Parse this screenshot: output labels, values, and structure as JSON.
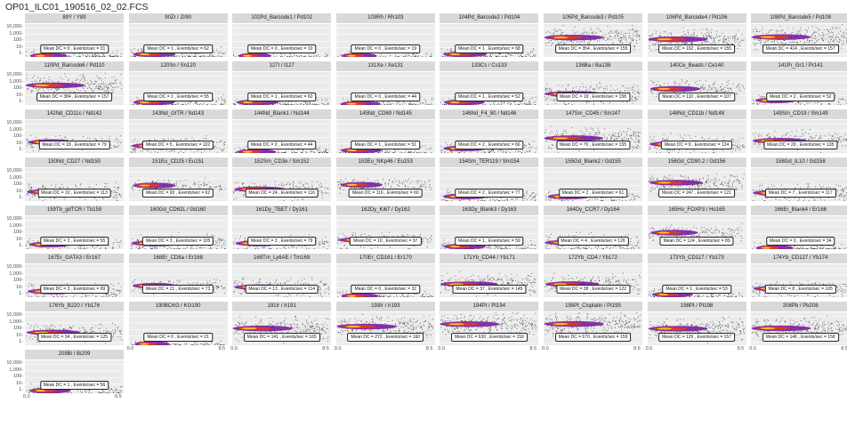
{
  "title": "OP01_ILC01_190516_02_02.FCS",
  "colors": {
    "panel_bg": "#ebebeb",
    "strip_bg": "#d9d9d9",
    "grid": "#ffffff",
    "density_low": "#111111",
    "density_mid": "#7a1fa2",
    "density_high": "#e8381a",
    "density_peak": "#ffd21f"
  },
  "chart_data": {
    "type": "scatter",
    "facet_layout": {
      "columns": 8,
      "rows": 8
    },
    "y_axis": {
      "scale": "log",
      "tick_labels": [
        "10,000-",
        "1,000-",
        "100-",
        "10-",
        "1-"
      ],
      "tick_values": [
        10000,
        1000,
        100,
        10,
        1
      ]
    },
    "x_axis": {
      "range": [
        0,
        8.5
      ],
      "tick_labels": [
        "0.0",
        "8.5"
      ]
    },
    "grid": true,
    "annotation_prefix_mean": "Mean DC = ",
    "annotation_prefix_events": "Events/sec = ",
    "panels": [
      {
        "label": "89Y / Y89",
        "mean_dc": 0,
        "events_per_sec": 31
      },
      {
        "label": "90Zr / Zr90",
        "mean_dc": 1,
        "events_per_sec": 62
      },
      {
        "label": "102Pd_Barcode1 / Pd102",
        "mean_dc": 0,
        "events_per_sec": 10
      },
      {
        "label": "103Rh / Rh103",
        "mean_dc": 0,
        "events_per_sec": 19
      },
      {
        "label": "104Pd_Barcode2 / Pd104",
        "mean_dc": 1,
        "events_per_sec": 68
      },
      {
        "label": "105Pd_Barcode3 / Pd105",
        "mean_dc": 354,
        "events_per_sec": 155
      },
      {
        "label": "106Pd_Barcode4 / Pd106",
        "mean_dc": 192,
        "events_per_sec": 155
      },
      {
        "label": "108Pd_Barcode5 / Pd108",
        "mean_dc": 414,
        "events_per_sec": 157
      },
      {
        "label": "110Pd_Barcode6 / Pd110",
        "mean_dc": 384,
        "events_per_sec": 157
      },
      {
        "label": "120Sn / Sn120",
        "mean_dc": 1,
        "events_per_sec": 55
      },
      {
        "label": "127I / I127",
        "mean_dc": 1,
        "events_per_sec": 60
      },
      {
        "label": "131Xe / Xe131",
        "mean_dc": 0,
        "events_per_sec": 44
      },
      {
        "label": "133Cs / Cs133",
        "mean_dc": 1,
        "events_per_sec": 52
      },
      {
        "label": "138Ba / Ba138",
        "mean_dc": 19,
        "events_per_sec": 158
      },
      {
        "label": "140Ce_Beads / Ce140",
        "mean_dc": 110,
        "events_per_sec": 107
      },
      {
        "label": "141Pr_Gr1 / Pr141",
        "mean_dc": 2,
        "events_per_sec": 52
      },
      {
        "label": "142Nd_CD11c / Nd142",
        "mean_dc": 18,
        "events_per_sec": 79
      },
      {
        "label": "143Nd_GITR / Nd143",
        "mean_dc": 5,
        "events_per_sec": 102
      },
      {
        "label": "144Nd_Blank1 / Nd144",
        "mean_dc": 0,
        "events_per_sec": 44
      },
      {
        "label": "145Nd_CD69 / Nd145",
        "mean_dc": 1,
        "events_per_sec": 51
      },
      {
        "label": "146Nd_F4_80 / Nd146",
        "mean_dc": 2,
        "events_per_sec": 66
      },
      {
        "label": "147Sm_CD45 / Sm147",
        "mean_dc": 70,
        "events_per_sec": 155
      },
      {
        "label": "148Nd_CD11b / Nd148",
        "mean_dc": 9,
        "events_per_sec": 124
      },
      {
        "label": "149Sm_CD19 / Sm149",
        "mean_dc": 29,
        "events_per_sec": 128
      },
      {
        "label": "150Nd_CD27 / Nd150",
        "mean_dc": 10,
        "events_per_sec": 113
      },
      {
        "label": "151Eu_CD25 / Eu151",
        "mean_dc": 93,
        "events_per_sec": 62
      },
      {
        "label": "152Sm_CD3e / Sm152",
        "mean_dc": 24,
        "events_per_sec": 116
      },
      {
        "label": "153Eu_NKp46 / Eu153",
        "mean_dc": 116,
        "events_per_sec": 60
      },
      {
        "label": "154Sm_TER119 / Sm154",
        "mean_dc": 2,
        "events_per_sec": 77
      },
      {
        "label": "155Gd_Blank2 / Gd155",
        "mean_dc": 2,
        "events_per_sec": 61
      },
      {
        "label": "156Gd_CD90.2 / Gd156",
        "mean_dc": 247,
        "events_per_sec": 121
      },
      {
        "label": "158Gd_IL10 / Gd158",
        "mean_dc": 7,
        "events_per_sec": 117
      },
      {
        "label": "159Tb_gdTCR / Tb159",
        "mean_dc": 2,
        "events_per_sec": 55
      },
      {
        "label": "160Gd_CD62L / Gd160",
        "mean_dc": 3,
        "events_per_sec": 105
      },
      {
        "label": "161Dy_TBET / Dy161",
        "mean_dc": 3,
        "events_per_sec": 79
      },
      {
        "label": "162Dy_Ki67 / Dy162",
        "mean_dc": 10,
        "events_per_sec": 97
      },
      {
        "label": "163Dy_Blank3 / Dy163",
        "mean_dc": 1,
        "events_per_sec": 59
      },
      {
        "label": "164Dy_CCR7 / Dy164",
        "mean_dc": 4,
        "events_per_sec": 126
      },
      {
        "label": "165Ho_FOXP3 / Ho165",
        "mean_dc": 124,
        "events_per_sec": 89
      },
      {
        "label": "166Er_Blank4 / Er166",
        "mean_dc": 0,
        "events_per_sec": 34
      },
      {
        "label": "167Er_GATA3 / Er167",
        "mean_dc": 3,
        "events_per_sec": 99
      },
      {
        "label": "168Er_CD8a / Er168",
        "mean_dc": 21,
        "events_per_sec": 73
      },
      {
        "label": "169Tm_Ly6AE / Tm169",
        "mean_dc": 13,
        "events_per_sec": 114
      },
      {
        "label": "170Er_CD161 / Er170",
        "mean_dc": 0,
        "events_per_sec": 32
      },
      {
        "label": "171Yb_CD44 / Yb171",
        "mean_dc": 37,
        "events_per_sec": 145
      },
      {
        "label": "172Yb_CD4 / Yb172",
        "mean_dc": 38,
        "events_per_sec": 122
      },
      {
        "label": "173Yb_CD117 / Yb173",
        "mean_dc": 1,
        "events_per_sec": 53
      },
      {
        "label": "174Yb_CD127 / Yb174",
        "mean_dc": 8,
        "events_per_sec": 105
      },
      {
        "label": "176Yb_B220 / Yb176",
        "mean_dc": 34,
        "events_per_sec": 125
      },
      {
        "label": "190BCKG / KG190",
        "mean_dc": 0,
        "events_per_sec": 21
      },
      {
        "label": "191Ir / Ir191",
        "mean_dc": 141,
        "events_per_sec": 165
      },
      {
        "label": "193Ir / Ir193",
        "mean_dc": 272,
        "events_per_sec": 160
      },
      {
        "label": "194Pt / Pt194",
        "mean_dc": 630,
        "events_per_sec": 159
      },
      {
        "label": "195Pt_Cisplatin / Pt195",
        "mean_dc": 670,
        "events_per_sec": 159
      },
      {
        "label": "198Pt / Pt198",
        "mean_dc": 129,
        "events_per_sec": 157
      },
      {
        "label": "208Pb / Pb208",
        "mean_dc": 146,
        "events_per_sec": 158
      },
      {
        "label": "209Bi / Bi209",
        "mean_dc": 1,
        "events_per_sec": 56
      }
    ]
  }
}
